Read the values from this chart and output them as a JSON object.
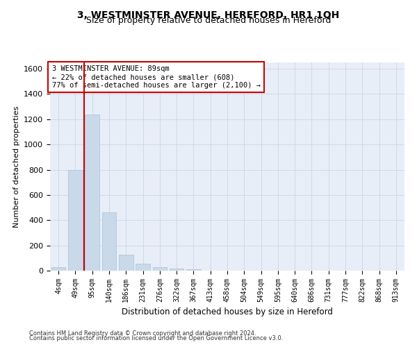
{
  "title": "3, WESTMINSTER AVENUE, HEREFORD, HR1 1QH",
  "subtitle": "Size of property relative to detached houses in Hereford",
  "xlabel": "Distribution of detached houses by size in Hereford",
  "ylabel": "Number of detached properties",
  "categories": [
    "4sqm",
    "49sqm",
    "95sqm",
    "140sqm",
    "186sqm",
    "231sqm",
    "276sqm",
    "322sqm",
    "367sqm",
    "413sqm",
    "458sqm",
    "504sqm",
    "549sqm",
    "595sqm",
    "640sqm",
    "686sqm",
    "731sqm",
    "777sqm",
    "822sqm",
    "868sqm",
    "913sqm"
  ],
  "values": [
    30,
    800,
    1240,
    460,
    125,
    55,
    25,
    15,
    10,
    0,
    0,
    0,
    0,
    0,
    0,
    0,
    0,
    0,
    0,
    0,
    0
  ],
  "bar_color": "#c9d9ea",
  "bar_edgecolor": "#a8c0d8",
  "vline_color": "#cc0000",
  "annotation_text": "3 WESTMINSTER AVENUE: 89sqm\n← 22% of detached houses are smaller (608)\n77% of semi-detached houses are larger (2,100) →",
  "annotation_box_edgecolor": "#cc0000",
  "annotation_box_facecolor": "#ffffff",
  "ylim": [
    0,
    1650
  ],
  "yticks": [
    0,
    200,
    400,
    600,
    800,
    1000,
    1200,
    1400,
    1600
  ],
  "grid_color": "#d0d8e8",
  "background_color": "#e8eef8",
  "footer_line1": "Contains HM Land Registry data © Crown copyright and database right 2024.",
  "footer_line2": "Contains public sector information licensed under the Open Government Licence v3.0.",
  "title_fontsize": 10,
  "subtitle_fontsize": 9
}
